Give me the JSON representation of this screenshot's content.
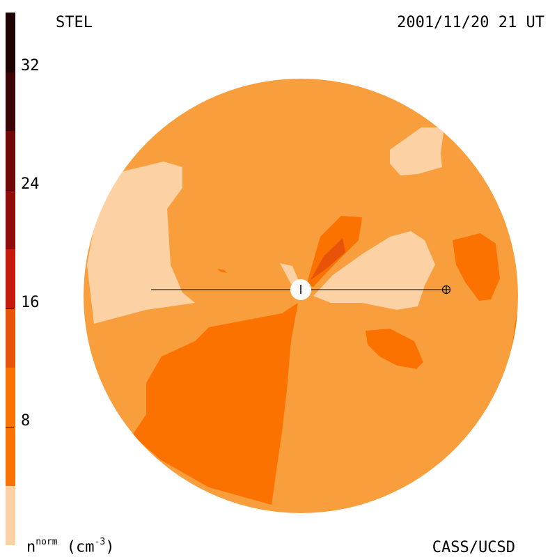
{
  "header": {
    "instrument": "STEL",
    "datetime": "2001/11/20 21 UT"
  },
  "footer": {
    "credit": "CASS/UCSD",
    "units_base": "n",
    "units_sup": "norm",
    "units_tail": " (cm",
    "units_exp": "-3",
    "units_close": ")"
  },
  "colorbar": {
    "ticks": [
      "32",
      "24",
      "16",
      "8"
    ],
    "colors": [
      "#fcd1a4",
      "#f99e3c",
      "#fb7200",
      "#e65309",
      "#c61b0c",
      "#920b0b",
      "#700808",
      "#3c0505",
      "#1e0303"
    ]
  },
  "map_colors": {
    "low": "#fcd1a4",
    "base": "#f99e3c",
    "mid": "#fb7200",
    "high": "#e65309",
    "line": "#000000",
    "sun": "#ffffff"
  }
}
